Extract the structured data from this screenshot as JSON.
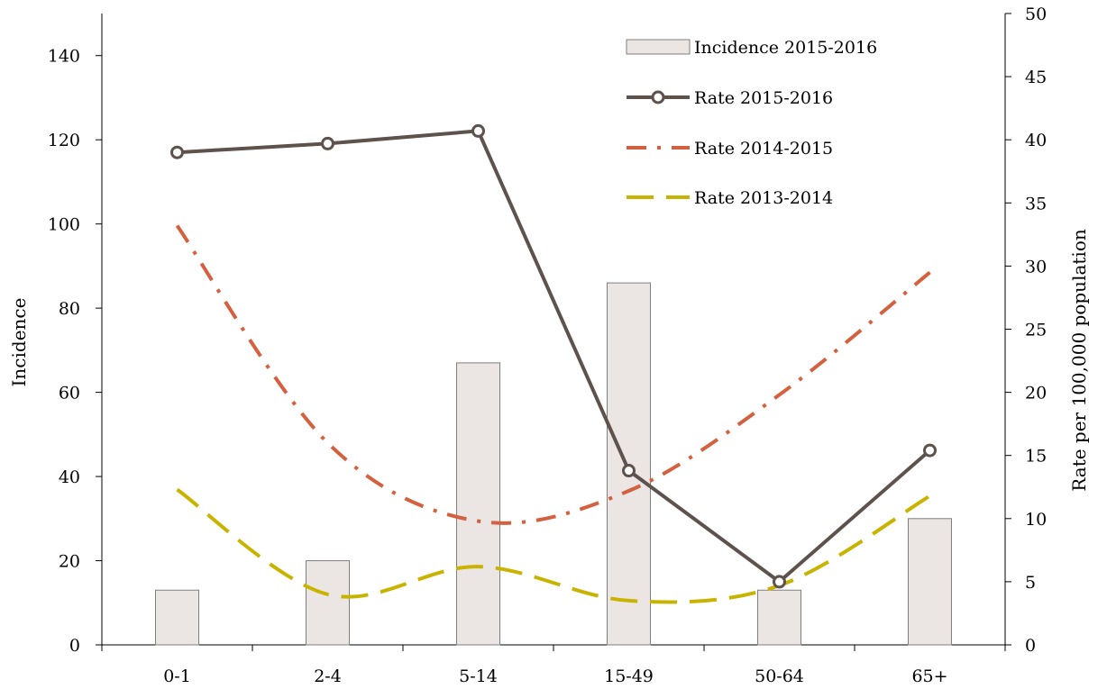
{
  "chart_data": {
    "type": "bar",
    "title": "",
    "categories": [
      "0-1",
      "2-4",
      "5-14",
      "15-49",
      "50-64",
      "65+"
    ],
    "ylabel": "Incidence",
    "y2label": "Rate per 100,000 population",
    "ylim": [
      0,
      150
    ],
    "y2lim": [
      0,
      50
    ],
    "yticks": [
      0,
      20,
      40,
      60,
      80,
      100,
      120,
      140
    ],
    "y2ticks": [
      0,
      5,
      10,
      15,
      20,
      25,
      30,
      35,
      40,
      45,
      50
    ],
    "legend_position": "top-right",
    "grid": false,
    "series": [
      {
        "name": "Incidence 2015-2016",
        "type": "bar",
        "axis": "left",
        "values": [
          13,
          20,
          67,
          86,
          13,
          30
        ],
        "color": "#ebe6e3",
        "edge_color": "#7f7f7f"
      },
      {
        "name": "Rate 2015-2016",
        "type": "line",
        "style": "solid-marker",
        "axis": "right",
        "values": [
          39.0,
          39.7,
          40.7,
          13.8,
          5.0,
          15.4
        ],
        "color": "#5e524c"
      },
      {
        "name": "Rate 2014-2015",
        "type": "line",
        "style": "dash-dot",
        "axis": "right",
        "values": [
          33.2,
          16.0,
          9.8,
          12.2,
          19.8,
          29.5
        ],
        "color": "#d4603f"
      },
      {
        "name": "Rate 2013-2014",
        "type": "line",
        "style": "dashed",
        "axis": "right",
        "values": [
          12.3,
          4.0,
          6.2,
          3.5,
          4.7,
          11.8
        ],
        "color": "#c8b400"
      }
    ]
  }
}
